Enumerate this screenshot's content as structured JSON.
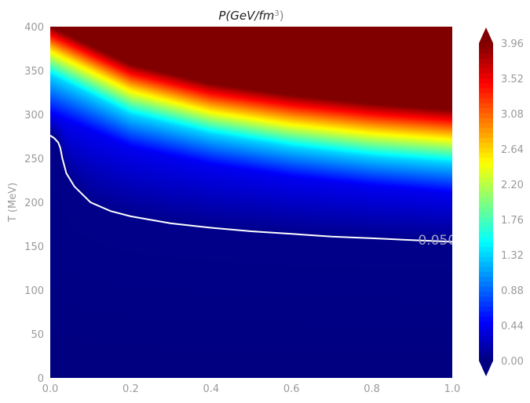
{
  "chart_data": {
    "type": "heatmap",
    "title_main": "P(GeV/fm",
    "title_sup": "3",
    "title_close": ")",
    "ylabel": "T (MeV)",
    "xlabel": "",
    "xlim": [
      0.0,
      1.0
    ],
    "ylim": [
      0,
      400
    ],
    "x_ticks": [
      "0.0",
      "0.2",
      "0.4",
      "0.6",
      "0.8",
      "1.0"
    ],
    "y_ticks": [
      "0",
      "50",
      "100",
      "150",
      "200",
      "250",
      "300",
      "350",
      "400"
    ],
    "colormap": "jet",
    "colorbar_range": [
      0.0,
      3.96
    ],
    "colorbar_ticks": [
      "0.00",
      "0.44",
      "0.88",
      "1.32",
      "1.76",
      "2.20",
      "2.64",
      "3.08",
      "3.52",
      "3.96"
    ],
    "colorbar_extend": "both",
    "contour_level_label": "0.050",
    "contour_color": "#ffffff",
    "contour": {
      "x": [
        0.0,
        0.01,
        0.02,
        0.025,
        0.03,
        0.04,
        0.06,
        0.1,
        0.15,
        0.2,
        0.3,
        0.4,
        0.5,
        0.6,
        0.7,
        0.8,
        0.9,
        1.0
      ],
      "y": [
        276,
        273,
        268,
        262,
        250,
        233,
        218,
        200,
        190,
        184,
        176,
        171,
        167,
        164,
        161,
        159,
        157,
        155
      ]
    },
    "field": {
      "description": "pressure grows strongly with T and with x",
      "level_curves": [
        {
          "value": 0.44,
          "x": [
            0.0,
            0.2,
            0.4,
            0.6,
            0.8,
            1.0
          ],
          "y": [
            300,
            262,
            242,
            228,
            218,
            210
          ]
        },
        {
          "value": 1.32,
          "x": [
            0.0,
            0.2,
            0.4,
            0.6,
            0.8,
            1.0
          ],
          "y": [
            345,
            300,
            278,
            263,
            252,
            245
          ]
        },
        {
          "value": 2.64,
          "x": [
            0.0,
            0.2,
            0.4,
            0.6,
            0.8,
            1.0
          ],
          "y": [
            375,
            330,
            306,
            292,
            282,
            275
          ]
        },
        {
          "value": 3.96,
          "x": [
            0.0,
            0.2,
            0.4,
            0.6,
            0.8,
            1.0
          ],
          "y": [
            400,
            357,
            335,
            322,
            312,
            305
          ]
        }
      ]
    }
  }
}
